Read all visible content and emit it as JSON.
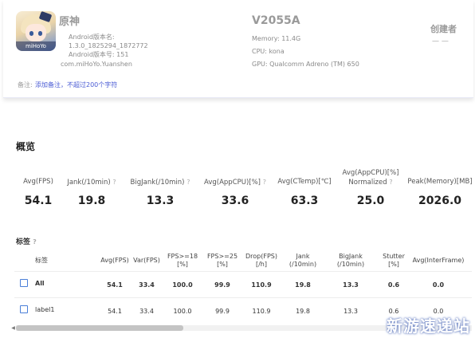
{
  "app": {
    "name": "原神",
    "icon_badge": "miHoYo",
    "version_name_label": "Android版本名:",
    "version_name": "1.3.0_1825294_1872772",
    "version_code_label": "Android版本号:",
    "version_code": "151",
    "package": "com.miHoYo.Yuanshen"
  },
  "device": {
    "model": "V2055A",
    "memory": "Memory: 11.4G",
    "cpu": "CPU: kona",
    "gpu": "GPU: Qualcomm Adreno (TM) 650"
  },
  "creator": {
    "label": "创建者",
    "value": "— —"
  },
  "remark": {
    "label": "备注:",
    "link": "添加备注，不超过200个字符"
  },
  "overview": {
    "title": "概览",
    "stats": [
      {
        "label": "Avg(FPS)",
        "value": "54.1",
        "help": ""
      },
      {
        "label": "Jank(/10min)",
        "value": "19.8",
        "help": "?"
      },
      {
        "label": "BigJank(/10min)",
        "value": "13.3",
        "help": "?"
      },
      {
        "label": "Avg(AppCPU)[%]",
        "value": "33.6",
        "help": "?"
      },
      {
        "label": "Avg(CTemp)[℃]",
        "value": "63.3",
        "help": ""
      },
      {
        "label": "Avg(AppCPU)[%]",
        "label2": "Normalized",
        "value": "25.0",
        "help": "?"
      },
      {
        "label": "Peak(Memory)[MB]",
        "value": "2026.0",
        "help": ""
      }
    ]
  },
  "tags": {
    "title": "标签",
    "help": "?",
    "headers": [
      {
        "l1": "标签",
        "l2": ""
      },
      {
        "l1": "Avg(FPS)",
        "l2": ""
      },
      {
        "l1": "Var(FPS)",
        "l2": ""
      },
      {
        "l1": "FPS>=18",
        "l2": "[%]"
      },
      {
        "l1": "FPS>=25",
        "l2": "[%]"
      },
      {
        "l1": "Drop(FPS)",
        "l2": "[/h]"
      },
      {
        "l1": "Jank",
        "l2": "(/10min)"
      },
      {
        "l1": "BigJank",
        "l2": "(/10min)"
      },
      {
        "l1": "Stutter",
        "l2": "[%]"
      },
      {
        "l1": "Avg(InterFrame)",
        "l2": ""
      }
    ],
    "rows": [
      {
        "label": "All",
        "values": [
          "54.1",
          "33.4",
          "100.0",
          "99.9",
          "110.9",
          "19.8",
          "13.3",
          "0.6",
          "0.0"
        ]
      },
      {
        "label": "label1",
        "values": [
          "54.1",
          "33.4",
          "100.0",
          "99.9",
          "110.9",
          "19.8",
          "13.3",
          "0.6",
          "0.0"
        ]
      }
    ]
  },
  "watermark": "新游速递站"
}
